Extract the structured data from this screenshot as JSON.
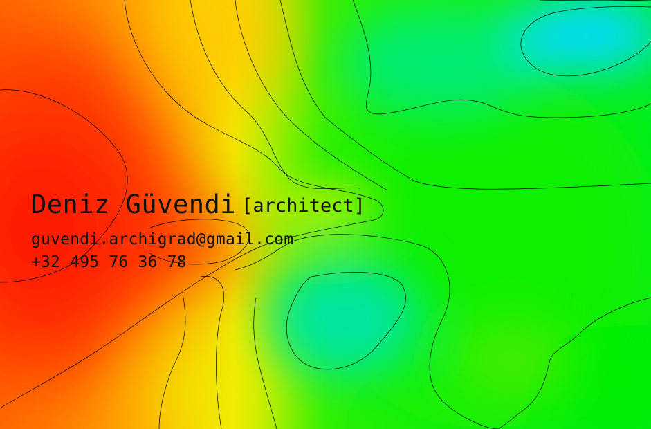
{
  "card": {
    "name": "Deniz Güvendi",
    "role": "[architect]",
    "email": "guvendi.archigrad@gmail.com",
    "phone": "+32 495 76 36 78"
  },
  "colors": {
    "hot": "#ff1a00",
    "warm": "#ff9a00",
    "yellow": "#f2f200",
    "green": "#00f000",
    "mint": "#00e68c",
    "cyan": "#00e0ff",
    "contour": "#000000",
    "text": "#111111"
  }
}
